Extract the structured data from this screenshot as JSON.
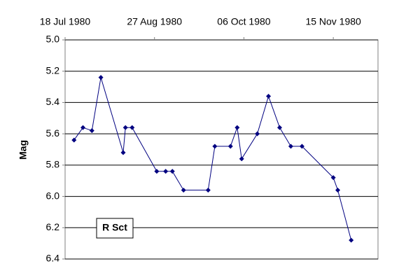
{
  "chart_data": {
    "type": "line",
    "y_label": "Mag",
    "x": [
      "1980-07-22",
      "1980-07-26",
      "1980-07-30",
      "1980-08-03",
      "1980-08-13",
      "1980-08-14",
      "1980-08-17",
      "1980-08-28",
      "1980-09-01",
      "1980-09-04",
      "1980-09-09",
      "1980-09-20",
      "1980-09-23",
      "1980-09-30",
      "1980-10-03",
      "1980-10-05",
      "1980-10-12",
      "1980-10-17",
      "1980-10-22",
      "1980-10-27",
      "1980-11-01",
      "1980-11-15",
      "1980-11-17",
      "1980-11-23"
    ],
    "series": [
      {
        "name": "R Sct",
        "color": "#000080",
        "values": [
          5.64,
          5.56,
          5.58,
          5.24,
          5.72,
          5.56,
          5.56,
          5.84,
          5.84,
          5.84,
          5.96,
          5.96,
          5.68,
          5.68,
          5.56,
          5.76,
          5.6,
          5.36,
          5.56,
          5.68,
          5.68,
          5.88,
          5.96,
          6.28
        ]
      }
    ],
    "xlim": [
      "1980-07-18",
      "1980-12-05"
    ],
    "xticks": [
      {
        "value": "1980-07-18",
        "label": "18 Jul 1980"
      },
      {
        "value": "1980-08-27",
        "label": "27 Aug 1980"
      },
      {
        "value": "1980-10-06",
        "label": "06 Oct 1980"
      },
      {
        "value": "1980-11-15",
        "label": "15 Nov 1980"
      }
    ],
    "ylim": [
      6.4,
      5.0
    ],
    "yticks": [
      {
        "value": 5.0,
        "label": "5.0"
      },
      5.2,
      5.4,
      5.6,
      5.8,
      {
        "value": 6.0,
        "label": "6.0"
      },
      6.2,
      6.4
    ],
    "grid": true,
    "legend": "lower left"
  }
}
